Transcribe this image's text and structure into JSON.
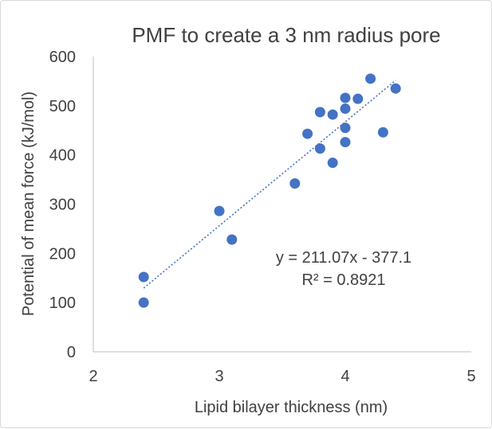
{
  "chart_data": {
    "type": "scatter",
    "title": "PMF to create a 3 nm radius pore",
    "xlabel": "Lipid bilayer thickness (nm)",
    "ylabel": "Potential of mean force (kJ/mol)",
    "xlim": [
      2,
      5
    ],
    "ylim": [
      0,
      600
    ],
    "x_ticks": [
      "2",
      "3",
      "4",
      "5"
    ],
    "y_ticks": [
      "0",
      "100",
      "200",
      "300",
      "400",
      "500",
      "600"
    ],
    "grid": false,
    "legend": "none",
    "point_color": "#4472c4",
    "series": [
      {
        "points": [
          {
            "x": 2.4,
            "y": 100
          },
          {
            "x": 2.4,
            "y": 152
          },
          {
            "x": 3.0,
            "y": 286
          },
          {
            "x": 3.1,
            "y": 228
          },
          {
            "x": 3.6,
            "y": 342
          },
          {
            "x": 3.7,
            "y": 443
          },
          {
            "x": 3.8,
            "y": 413
          },
          {
            "x": 3.8,
            "y": 487
          },
          {
            "x": 3.9,
            "y": 384
          },
          {
            "x": 3.9,
            "y": 482
          },
          {
            "x": 4.0,
            "y": 426
          },
          {
            "x": 4.0,
            "y": 455
          },
          {
            "x": 4.0,
            "y": 494
          },
          {
            "x": 4.0,
            "y": 516
          },
          {
            "x": 4.1,
            "y": 514
          },
          {
            "x": 4.2,
            "y": 555
          },
          {
            "x": 4.3,
            "y": 446
          },
          {
            "x": 4.4,
            "y": 535
          }
        ]
      }
    ],
    "trendline": {
      "type": "linear",
      "slope": 211.07,
      "intercept": -377.1,
      "x_range": [
        2.4,
        4.4
      ],
      "style": "dotted",
      "color": "#4472c4",
      "equation_label": "y = 211.07x - 377.1",
      "r2_label": "R² = 0.8921"
    }
  }
}
